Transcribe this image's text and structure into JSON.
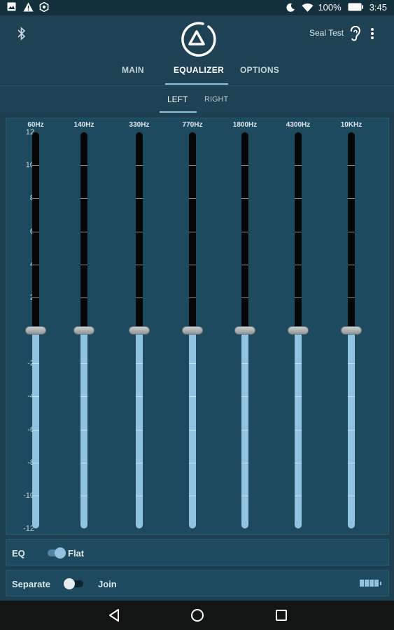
{
  "status_bar": {
    "battery_percent": "100%",
    "time": "3:45",
    "left_icons": [
      "image-notification-icon",
      "warning-icon",
      "settings-notification-icon"
    ],
    "right_icons": [
      "do-not-disturb-moon-icon",
      "wifi-icon",
      "battery-icon"
    ]
  },
  "header": {
    "device_name": "Seal Test",
    "icons": [
      "bluetooth-icon",
      "app-logo-icon",
      "ear-icon",
      "overflow-menu-icon"
    ]
  },
  "tabs": [
    {
      "label": "MAIN",
      "active": false
    },
    {
      "label": "EQUALIZER",
      "active": true
    },
    {
      "label": "OPTIONS",
      "active": false
    }
  ],
  "channel_tabs": [
    {
      "label": "LEFT",
      "active": true
    },
    {
      "label": "RIGHT",
      "active": false
    }
  ],
  "equalizer": {
    "db_scale": [
      "12",
      "10",
      "8",
      "6",
      "4",
      "2",
      "0",
      "-2",
      "-4",
      "-6",
      "-8",
      "-10",
      "-12"
    ],
    "db_range": [
      -12,
      12
    ],
    "bands": [
      {
        "freq": "60Hz",
        "gain_db": 0
      },
      {
        "freq": "140Hz",
        "gain_db": 0
      },
      {
        "freq": "330Hz",
        "gain_db": 0
      },
      {
        "freq": "770Hz",
        "gain_db": 0
      },
      {
        "freq": "1800Hz",
        "gain_db": 0
      },
      {
        "freq": "4300Hz",
        "gain_db": 0
      },
      {
        "freq": "10KHz",
        "gain_db": 0
      }
    ]
  },
  "eq_toggle": {
    "left_label": "EQ",
    "right_label": "Flat",
    "state": "Flat"
  },
  "join_toggle": {
    "left_label": "Separate",
    "right_label": "Join",
    "state": "Separate"
  },
  "battery_level": {
    "filled_cells": 4,
    "total_cells": 4
  },
  "nav_bar": {
    "buttons": [
      "back-icon",
      "home-icon",
      "recents-icon"
    ]
  },
  "colors": {
    "background": "#1d3f4f",
    "panel": "#1d4a5e",
    "accent": "#8fc3df",
    "track": "#050707",
    "nav_bar": "#131414"
  }
}
